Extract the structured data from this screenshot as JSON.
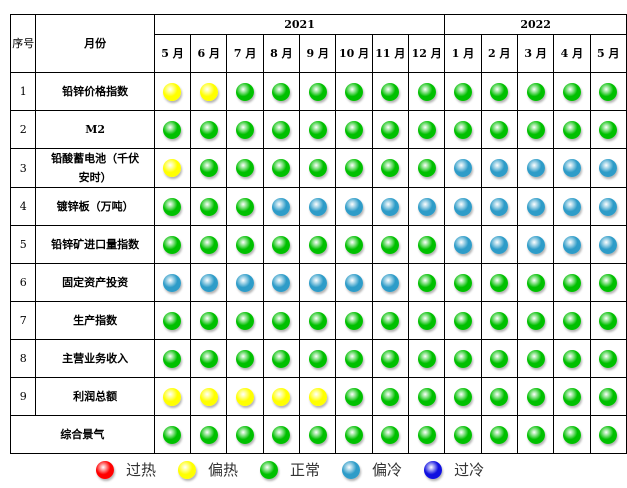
{
  "colors": {
    "hot": "#ff0000",
    "warm": "#ffff00",
    "normal": "#00c000",
    "cool": "#2e9cc8",
    "cold": "#1010e0"
  },
  "chart_data": {
    "type": "table",
    "header": {
      "seq": "序号",
      "item": "月份"
    },
    "years": [
      {
        "label": "2021",
        "span": 8
      },
      {
        "label": "2022",
        "span": 5
      }
    ],
    "months": [
      "5 月",
      "6 月",
      "7 月",
      "8 月",
      "9 月",
      "10 月",
      "11 月",
      "12 月",
      "1 月",
      "2 月",
      "3 月",
      "4 月",
      "5 月"
    ],
    "rows": [
      {
        "seq": "1",
        "name": "铅锌价格指数",
        "states": [
          "warm",
          "warm",
          "normal",
          "normal",
          "normal",
          "normal",
          "normal",
          "normal",
          "normal",
          "normal",
          "normal",
          "normal",
          "normal"
        ]
      },
      {
        "seq": "2",
        "name": "M2",
        "states": [
          "normal",
          "normal",
          "normal",
          "normal",
          "normal",
          "normal",
          "normal",
          "normal",
          "normal",
          "normal",
          "normal",
          "normal",
          "normal"
        ]
      },
      {
        "seq": "3",
        "name": "铅酸蓄电池（千伏安时）",
        "states": [
          "warm",
          "normal",
          "normal",
          "normal",
          "normal",
          "normal",
          "normal",
          "normal",
          "cool",
          "cool",
          "cool",
          "cool",
          "cool"
        ]
      },
      {
        "seq": "4",
        "name": "镀锌板（万吨）",
        "states": [
          "normal",
          "normal",
          "normal",
          "cool",
          "cool",
          "cool",
          "cool",
          "cool",
          "cool",
          "cool",
          "cool",
          "cool",
          "cool"
        ]
      },
      {
        "seq": "5",
        "name": "铅锌矿进口量指数",
        "states": [
          "normal",
          "normal",
          "normal",
          "normal",
          "normal",
          "normal",
          "normal",
          "normal",
          "cool",
          "cool",
          "cool",
          "cool",
          "cool"
        ]
      },
      {
        "seq": "6",
        "name": "固定资产投资",
        "states": [
          "cool",
          "cool",
          "cool",
          "cool",
          "cool",
          "cool",
          "cool",
          "normal",
          "normal",
          "normal",
          "normal",
          "normal",
          "normal"
        ]
      },
      {
        "seq": "7",
        "name": "生产指数",
        "states": [
          "normal",
          "normal",
          "normal",
          "normal",
          "normal",
          "normal",
          "normal",
          "normal",
          "normal",
          "normal",
          "normal",
          "normal",
          "normal"
        ]
      },
      {
        "seq": "8",
        "name": "主营业务收入",
        "states": [
          "normal",
          "normal",
          "normal",
          "normal",
          "normal",
          "normal",
          "normal",
          "normal",
          "normal",
          "normal",
          "normal",
          "normal",
          "normal"
        ]
      },
      {
        "seq": "9",
        "name": "利润总额",
        "states": [
          "warm",
          "warm",
          "warm",
          "warm",
          "warm",
          "normal",
          "normal",
          "normal",
          "normal",
          "normal",
          "normal",
          "normal",
          "normal"
        ]
      },
      {
        "seq": "",
        "name": "综合景气",
        "states": [
          "normal",
          "normal",
          "normal",
          "normal",
          "normal",
          "normal",
          "normal",
          "normal",
          "normal",
          "normal",
          "normal",
          "normal",
          "normal"
        ]
      }
    ]
  },
  "legend": [
    {
      "key": "hot",
      "label": "过热"
    },
    {
      "key": "warm",
      "label": "偏热"
    },
    {
      "key": "normal",
      "label": "正常"
    },
    {
      "key": "cool",
      "label": "偏冷"
    },
    {
      "key": "cold",
      "label": "过冷"
    }
  ]
}
